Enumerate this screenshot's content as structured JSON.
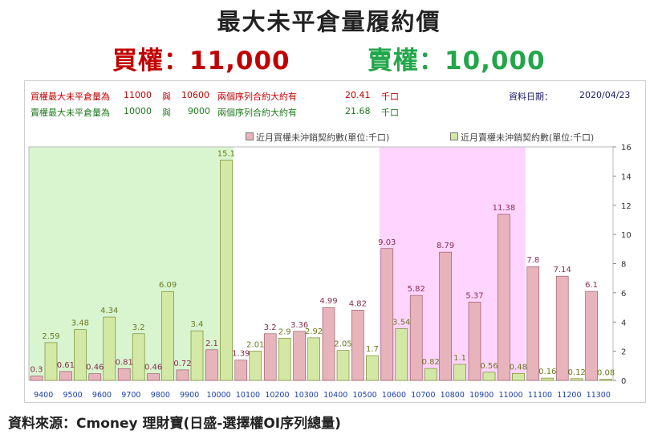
{
  "title": "最大未平倉量履約價",
  "call_label": "買權：11,000",
  "put_label": "賣權：10,000",
  "info": {
    "call": {
      "label": "買權最大未平倉量為",
      "strike1": "11000",
      "conj": "與",
      "strike2": "10600",
      "text": "兩個序列合約大約有",
      "value": "20.41",
      "unit": "千口"
    },
    "put": {
      "label": "賣權最大未平倉量為",
      "strike1": "10000",
      "conj": "與",
      "strike2": "9000",
      "text": "兩個序列合約大約有",
      "value": "21.68",
      "unit": "千口"
    },
    "date_label": "資料日期：",
    "date_value": "2020/04/23"
  },
  "footer": "資料來源：Cmoney 理財寶(日盛-選擇權OI序列總量)",
  "colors": {
    "call_bar": "#e8b4bc",
    "put_bar": "#d4e8a6",
    "call_zone": "#ffd5ff",
    "put_zone": "#d8f5d0",
    "call_label": "#8b2c4e",
    "put_label": "#6b7a1a",
    "tick": "#1a3fa8"
  },
  "chart_data": {
    "type": "bar",
    "categories": [
      "9400",
      "9500",
      "9600",
      "9700",
      "9800",
      "9900",
      "10000",
      "10100",
      "10200",
      "10300",
      "10400",
      "10500",
      "10600",
      "10700",
      "10800",
      "10900",
      "11000",
      "11100",
      "11200",
      "11300"
    ],
    "series": [
      {
        "name": "近月買權未沖銷契約數(單位:千口)",
        "values": [
          0.3,
          0.61,
          0.46,
          0.81,
          0.46,
          0.72,
          2.1,
          1.39,
          3.2,
          3.36,
          4.99,
          4.82,
          9.03,
          5.82,
          8.79,
          5.37,
          11.38,
          7.8,
          7.14,
          6.1
        ]
      },
      {
        "name": "近月賣權未沖銷契約數(單位:千口)",
        "values": [
          2.59,
          3.48,
          4.34,
          3.2,
          6.09,
          3.4,
          15.1,
          2.01,
          2.9,
          2.92,
          2.05,
          1.7,
          3.54,
          0.82,
          1.1,
          0.56,
          0.48,
          0.16,
          0.12,
          0.08
        ]
      }
    ],
    "data_labels_call": [
      "0.3",
      "0.61",
      "0.46",
      "0.81",
      "0.46",
      "0.72",
      "2.1",
      "1.39",
      "3.2",
      "3.36",
      "4.99",
      "4.82",
      "9.03",
      "5.82",
      "8.79",
      "5.37",
      "11.38",
      "7.8",
      "7.14",
      "6.1"
    ],
    "data_labels_put": [
      "2.59",
      "3.48",
      "4.34",
      "3.2",
      "6.09",
      "3.4",
      "15.1",
      "2.01",
      "2.9",
      "2.92",
      "2.05",
      "1.7",
      "3.54",
      "0.82",
      "1.1",
      "0.56",
      "0.48",
      "0.16",
      "0.12",
      "0.08"
    ],
    "y_ticks": [
      "0",
      "2",
      "4",
      "6",
      "8",
      "10",
      "12",
      "14",
      "16"
    ],
    "ylim": [
      0,
      16
    ],
    "put_zone": [
      "9400",
      "10000"
    ],
    "call_zone": [
      "10600",
      "11000"
    ],
    "legend_position": "top-right",
    "grid": false
  }
}
